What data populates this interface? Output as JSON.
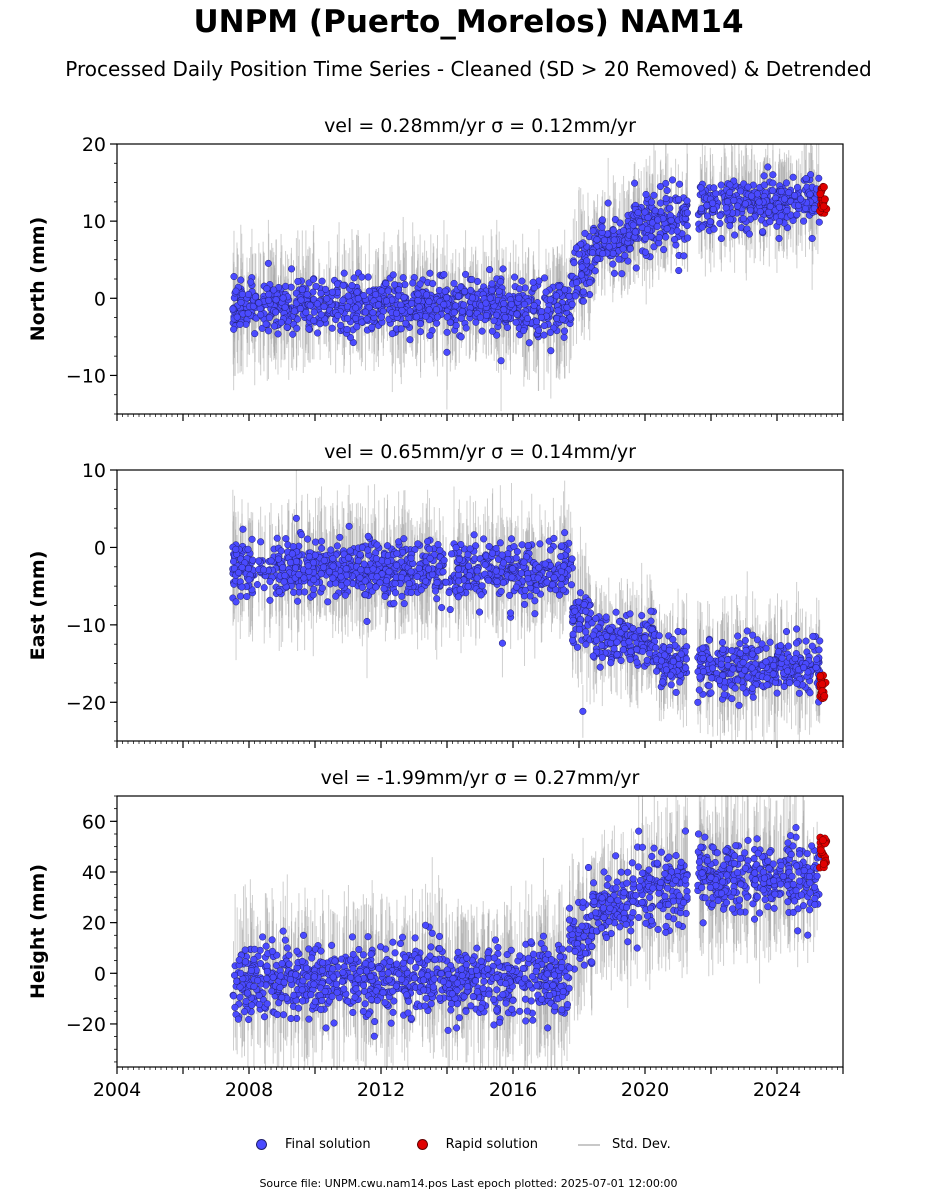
{
  "title": "UNPM (Puerto_Morelos) NAM14",
  "subtitle": "Processed Daily Position Time Series - Cleaned (SD > 20 Removed) & Detrended",
  "colors": {
    "final": "#4a4aff",
    "final_edge": "#20206a",
    "rapid": "#e00000",
    "std": "#a8a8a8"
  },
  "legend": {
    "final": "Final solution",
    "rapid": "Rapid solution",
    "std": "Std. Dev."
  },
  "source_note": "Source file: UNPM.cwu.nam14.pos  Last epoch plotted: 2025-07-01 12:00:00",
  "chart_data": [
    {
      "type": "scatter",
      "title": "vel = 0.28mm/yr   σ = 0.12mm/yr",
      "ylabel": "North (mm)",
      "xlim": [
        2004,
        2026
      ],
      "ylim": [
        -15,
        20
      ],
      "yticks": [
        -10,
        0,
        10,
        20
      ],
      "ytick_labels": [
        "−10",
        "0",
        "10",
        "20"
      ],
      "segments": [
        {
          "from": 2007.5,
          "to": 2017.8,
          "mean": -1,
          "spread": 1.8
        },
        {
          "from": 2017.8,
          "to": 2018.4,
          "mean": 4,
          "spread": 2
        },
        {
          "from": 2018.4,
          "to": 2019.6,
          "mean": 7,
          "spread": 1.6
        },
        {
          "from": 2019.6,
          "to": 2021.3,
          "mean": 10,
          "spread": 1.8
        },
        {
          "from": 2021.6,
          "to": 2025.3,
          "mean": 12,
          "spread": 1.6
        }
      ],
      "rapid": {
        "from": 2025.3,
        "to": 2025.5,
        "range": [
          11,
          14.5
        ]
      }
    },
    {
      "type": "scatter",
      "title": "vel = 0.65mm/yr   σ = 0.14mm/yr",
      "ylabel": "East (mm)",
      "xlim": [
        2004,
        2026
      ],
      "ylim": [
        -25,
        10
      ],
      "yticks": [
        -20,
        -10,
        0,
        10
      ],
      "ytick_labels": [
        "−20",
        "−10",
        "0",
        "10"
      ],
      "segments": [
        {
          "from": 2007.5,
          "to": 2017.8,
          "mean": -3,
          "spread": 1.8
        },
        {
          "from": 2017.8,
          "to": 2018.4,
          "mean": -9,
          "spread": 2
        },
        {
          "from": 2018.4,
          "to": 2020.3,
          "mean": -12,
          "spread": 1.6
        },
        {
          "from": 2020.3,
          "to": 2021.3,
          "mean": -15,
          "spread": 1.6
        },
        {
          "from": 2021.6,
          "to": 2025.3,
          "mean": -15.5,
          "spread": 1.8
        }
      ],
      "rapid": {
        "from": 2025.3,
        "to": 2025.5,
        "range": [
          -19.5,
          -16.5
        ]
      }
    },
    {
      "type": "scatter",
      "title": "vel = -1.99mm/yr   σ = 0.27mm/yr",
      "ylabel": "Height (mm)",
      "xlim": [
        2004,
        2026
      ],
      "ylim": [
        -37,
        70
      ],
      "yticks": [
        -20,
        0,
        20,
        40,
        60
      ],
      "ytick_labels": [
        "−20",
        "0",
        "20",
        "40",
        "60"
      ],
      "xticks": [
        2004,
        2008,
        2012,
        2016,
        2020,
        2024
      ],
      "xtick_labels": [
        "2004",
        "2008",
        "2012",
        "2016",
        "2020",
        "2024"
      ],
      "segments": [
        {
          "from": 2007.5,
          "to": 2017.7,
          "mean": -3,
          "spread": 7
        },
        {
          "from": 2017.7,
          "to": 2018.4,
          "mean": 15,
          "spread": 7
        },
        {
          "from": 2018.4,
          "to": 2019.6,
          "mean": 25,
          "spread": 6
        },
        {
          "from": 2019.6,
          "to": 2021.3,
          "mean": 33,
          "spread": 7
        },
        {
          "from": 2021.6,
          "to": 2025.3,
          "mean": 38,
          "spread": 7
        }
      ],
      "rapid": {
        "from": 2025.3,
        "to": 2025.5,
        "range": [
          40,
          54
        ]
      }
    }
  ]
}
